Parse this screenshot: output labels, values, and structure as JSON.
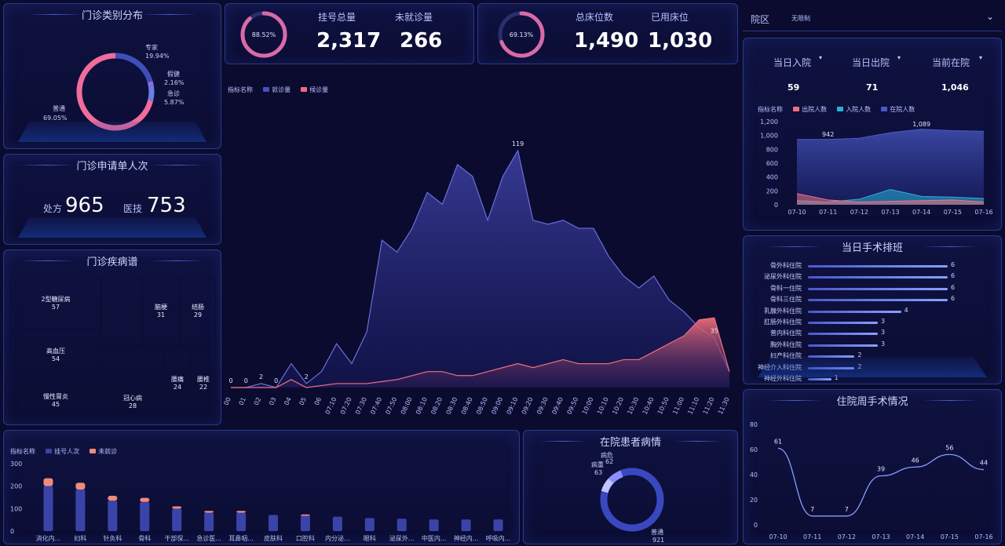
{
  "clinic_type": {
    "title": "门诊类别分布",
    "slices": [
      {
        "name": "专家",
        "pct": "19.94%",
        "value": 19.94,
        "color": "#3d4fb8"
      },
      {
        "name": "假健",
        "pct": "2.16%",
        "value": 2.16,
        "color": "#8a6fe0"
      },
      {
        "name": "急诊",
        "pct": "5.87%",
        "value": 5.87,
        "color": "#6a7ee8"
      },
      {
        "name": "普通",
        "pct": "69.05%",
        "value": 69.05,
        "color": "#f06c9b"
      }
    ]
  },
  "prescription": {
    "title": "门诊申请单人次",
    "items": [
      {
        "label": "处方",
        "value": "965"
      },
      {
        "label": "医技",
        "value": "753"
      }
    ]
  },
  "disease_map": {
    "title": "门诊疾病谱",
    "cells": [
      {
        "name": "2型糖尿病",
        "value": "57",
        "color": "#3d4fb8"
      },
      {
        "name": "",
        "value": "",
        "color": "#7b4fb0"
      },
      {
        "name": "脑梗",
        "value": "31",
        "color": "#27306e"
      },
      {
        "name": "结肠",
        "value": "29",
        "color": "#5b63d6"
      },
      {
        "name": "高血压",
        "value": "54",
        "color": "#6a4fa8"
      },
      {
        "name": "",
        "value": "",
        "color": "#2e4fc8"
      },
      {
        "name": "慢性胃炎",
        "value": "45",
        "color": "#c06ad0"
      },
      {
        "name": "冠心病",
        "value": "28",
        "color": "#3344a8"
      },
      {
        "name": "腰痛",
        "value": "24",
        "color": "#f07098"
      },
      {
        "name": "腰椎",
        "value": "22",
        "color": "#4a5abc"
      }
    ]
  },
  "registration": {
    "ring_pct": "88.52%",
    "ring_value": 88.52,
    "label1": "挂号总量",
    "label2": "未就诊量",
    "value1": "2,317",
    "value2": "266"
  },
  "beds": {
    "ring_pct": "69.13%",
    "ring_value": 69.13,
    "label1": "总床位数",
    "label2": "已用床位",
    "value1": "1,490",
    "value2": "1,030"
  },
  "main_chart": {
    "legend_title": "指标名称",
    "legend": [
      {
        "name": "就诊量",
        "color": "#4a4fc0"
      },
      {
        "name": "候诊量",
        "color": "#f06c7a"
      }
    ]
  },
  "chart_data": [
    {
      "type": "area",
      "x": [
        "00",
        "01",
        "02",
        "03",
        "04",
        "05",
        "06",
        "07:10",
        "07:20",
        "07:30",
        "07:40",
        "07:50",
        "08:00",
        "08:10",
        "08:20",
        "08:30",
        "08:40",
        "08:50",
        "09:00",
        "09:10",
        "09:20",
        "09:30",
        "09:40",
        "09:50",
        "10:00",
        "10:10",
        "10:20",
        "10:30",
        "10:40",
        "10:50",
        "11:00",
        "11:10",
        "11:20",
        "11:30"
      ],
      "series": [
        {
          "name": "就诊量",
          "values": [
            0,
            0,
            2,
            0,
            12,
            2,
            8,
            22,
            12,
            28,
            74,
            68,
            80,
            98,
            92,
            112,
            106,
            84,
            106,
            119,
            84,
            82,
            84,
            80,
            80,
            66,
            56,
            50,
            56,
            44,
            38,
            30,
            25,
            8
          ]
        },
        {
          "name": "候诊量",
          "values": [
            0,
            0,
            0,
            0,
            4,
            0,
            1,
            2,
            2,
            2,
            3,
            4,
            6,
            8,
            8,
            6,
            6,
            8,
            10,
            12,
            10,
            12,
            14,
            12,
            12,
            12,
            14,
            14,
            18,
            22,
            26,
            34,
            35,
            8
          ]
        }
      ],
      "labels": [
        {
          "x": "01",
          "text": "0"
        },
        {
          "x": "02",
          "text": "2"
        },
        {
          "x": "03",
          "text": "0"
        },
        {
          "x": "05",
          "text": "2"
        },
        {
          "x": "09:10",
          "text": "119"
        },
        {
          "x": "11:20",
          "text": "35"
        },
        {
          "x": "00",
          "text": "0"
        }
      ],
      "ylim": [
        0,
        130
      ]
    },
    {
      "type": "bar",
      "legend_title": "指标名称",
      "legend": [
        "挂号人次",
        "未就诊"
      ],
      "categories": [
        "消化内...",
        "妇科",
        "针灸科",
        "骨科",
        "干部保...",
        "急诊医...",
        "耳鼻咽...",
        "皮肤科",
        "口腔科",
        "内分泌...",
        "眼科",
        "泌尿外...",
        "中医内...",
        "神经内...",
        "呼吸内..."
      ],
      "series": [
        {
          "name": "挂号人次",
          "values": [
            200,
            185,
            135,
            130,
            100,
            82,
            82,
            72,
            68,
            64,
            58,
            55,
            52,
            52,
            52
          ]
        },
        {
          "name": "未就诊",
          "values": [
            35,
            30,
            22,
            18,
            10,
            8,
            8,
            0,
            6,
            0,
            0,
            0,
            0,
            0,
            0
          ]
        }
      ],
      "yticks": [
        "300",
        "200",
        "100",
        "0"
      ],
      "ylim": [
        0,
        300
      ]
    },
    {
      "type": "area",
      "legend_title": "指标名称",
      "x": [
        "07-10",
        "07-11",
        "07-12",
        "07-13",
        "07-14",
        "07-15",
        "07-16"
      ],
      "series": [
        {
          "name": "出院人数",
          "values": [
            160,
            70,
            40,
            50,
            60,
            70,
            40
          ]
        },
        {
          "name": "入院人数",
          "values": [
            60,
            40,
            80,
            220,
            120,
            110,
            90
          ]
        },
        {
          "name": "在院人数",
          "values": [
            942,
            942,
            960,
            1040,
            1089,
            1070,
            1060
          ]
        }
      ],
      "labels": [
        {
          "x": "07-11",
          "text": "942"
        },
        {
          "x": "07-14",
          "text": "1,089"
        }
      ],
      "yticks": [
        "1,200",
        "1,000",
        "800",
        "600",
        "400",
        "200",
        "0"
      ],
      "ylim": [
        0,
        1200
      ]
    },
    {
      "type": "line",
      "title": "住院周手术情况",
      "x": [
        "07-10",
        "07-11",
        "07-12",
        "07-13",
        "07-14",
        "07-15",
        "07-16"
      ],
      "values": [
        61,
        7,
        7,
        39,
        46,
        56,
        44
      ],
      "yticks": [
        "80",
        "60",
        "40",
        "20",
        "0"
      ],
      "ylim": [
        0,
        80
      ]
    }
  ],
  "ward": {
    "label": "院区",
    "value": "无限制",
    "chevron": "chevron-down-icon"
  },
  "inpatient": {
    "labels": [
      "当日入院",
      "当日出院",
      "当前在院"
    ],
    "values": [
      "59",
      "71",
      "1,046"
    ],
    "legend": [
      {
        "name": "出院人数",
        "color": "#f07080"
      },
      {
        "name": "入院人数",
        "color": "#28b0d8"
      },
      {
        "name": "在院人数",
        "color": "#4a5ac8"
      }
    ]
  },
  "surgery_rank": {
    "title": "当日手术排班",
    "rows": [
      {
        "name": "骨外科住院",
        "value": 6,
        "label": "6"
      },
      {
        "name": "泌尿外科住院",
        "value": 6,
        "label": "6"
      },
      {
        "name": "骨科一住院",
        "value": 6,
        "label": "6"
      },
      {
        "name": "骨科三住院",
        "value": 6,
        "label": "6"
      },
      {
        "name": "乳腺外科住院",
        "value": 4,
        "label": "4"
      },
      {
        "name": "肛肠外科住院",
        "value": 3,
        "label": "3"
      },
      {
        "name": "普内科住院",
        "value": 3,
        "label": "3"
      },
      {
        "name": "胸外科住院",
        "value": 3,
        "label": "3"
      },
      {
        "name": "妇产科住院",
        "value": 2,
        "label": "2"
      },
      {
        "name": "神经介入科住院",
        "value": 2,
        "label": "2"
      },
      {
        "name": "神经外科住院",
        "value": 1,
        "label": "1"
      }
    ]
  },
  "patient_condition": {
    "title": "在院患者病情",
    "labels": [
      {
        "name": "病危",
        "value": "62"
      },
      {
        "name": "病重",
        "value": "63"
      },
      {
        "name": "普通",
        "value": "921"
      }
    ]
  }
}
